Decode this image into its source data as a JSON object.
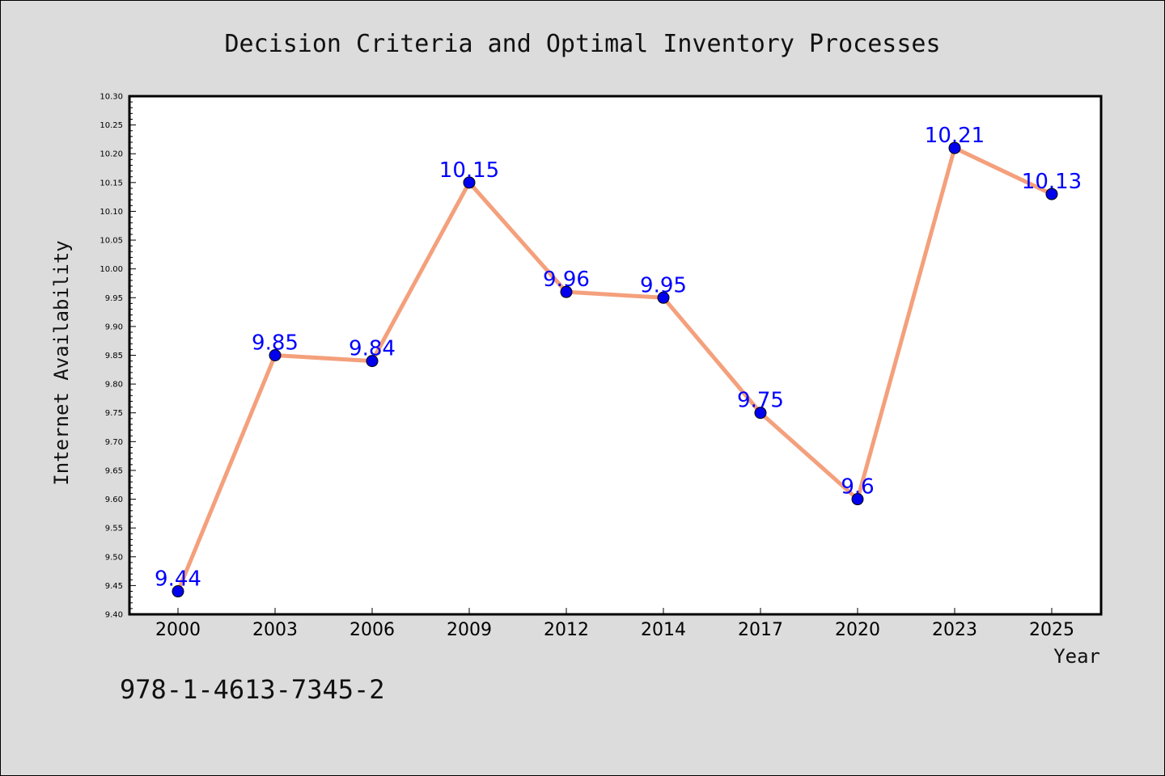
{
  "chart_data": {
    "type": "line",
    "title": "Decision Criteria and Optimal Inventory Processes",
    "xlabel": "Year",
    "ylabel": "Internet Availability",
    "categories": [
      "2000",
      "2003",
      "2006",
      "2009",
      "2012",
      "2014",
      "2017",
      "2020",
      "2023",
      "2025"
    ],
    "series": [
      {
        "values": [
          9.44,
          9.85,
          9.84,
          10.15,
          9.96,
          9.95,
          9.75,
          9.6,
          10.21,
          10.13
        ],
        "data_labels": [
          "9.44",
          "9.85",
          "9.84",
          "10.15",
          "9.96",
          "9.95",
          "9.75",
          "9.6",
          "10.21",
          "10.13"
        ],
        "line_color": "#f4a07c",
        "marker_color": "#0000ee"
      }
    ],
    "ylim": [
      9.4,
      10.3
    ],
    "yticks": [
      "9.40",
      "9.45",
      "9.50",
      "9.55",
      "9.60",
      "9.65",
      "9.70",
      "9.75",
      "9.80",
      "9.85",
      "9.90",
      "9.95",
      "10.00",
      "10.05",
      "10.10",
      "10.15",
      "10.20",
      "10.25",
      "10.30"
    ],
    "grid": false,
    "legend": "none"
  },
  "footnote": "978-1-4613-7345-2",
  "colors": {
    "background": "#dcdcdc",
    "plot_area": "#ffffff",
    "data_label": "#0000ff"
  }
}
